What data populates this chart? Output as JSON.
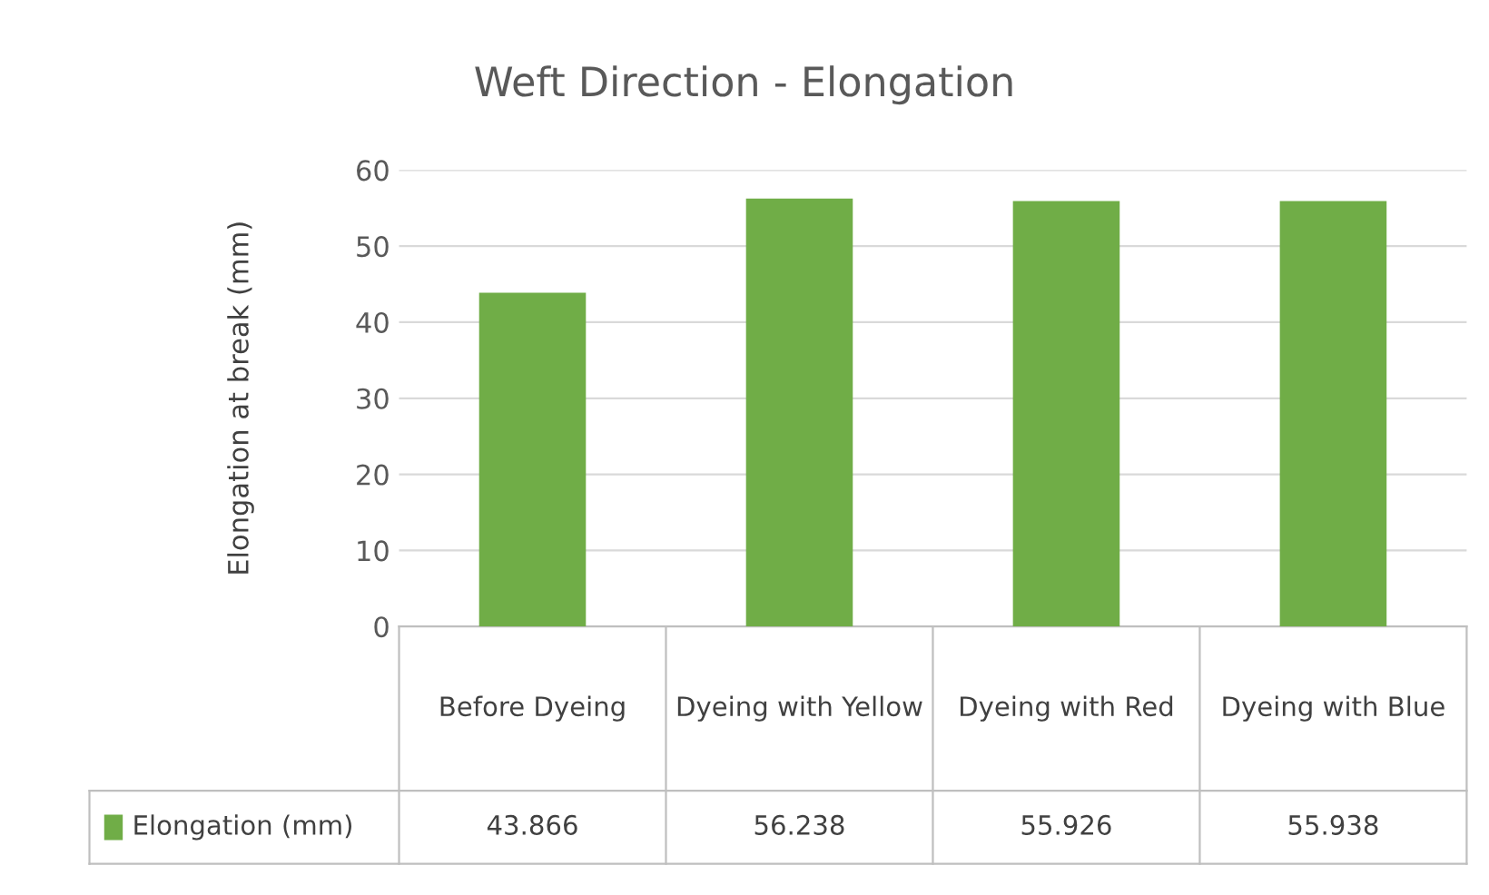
{
  "chart_data": {
    "type": "bar",
    "title": "Weft Direction - Elongation",
    "ylabel": "Elongation at break (mm)",
    "categories": [
      "Before Dyeing",
      "Dyeing with Yellow",
      "Dyeing with Red",
      "Dyeing with Blue"
    ],
    "series": [
      {
        "name": "Elongation (mm)",
        "color": "#70ad47",
        "values": [
          43.866,
          56.238,
          55.926,
          55.938
        ]
      }
    ],
    "ylim": [
      0,
      60
    ],
    "yticks": [
      0,
      10,
      20,
      30,
      40,
      50,
      60
    ],
    "grid": "y",
    "data_labels": true,
    "legend": "bottom"
  }
}
